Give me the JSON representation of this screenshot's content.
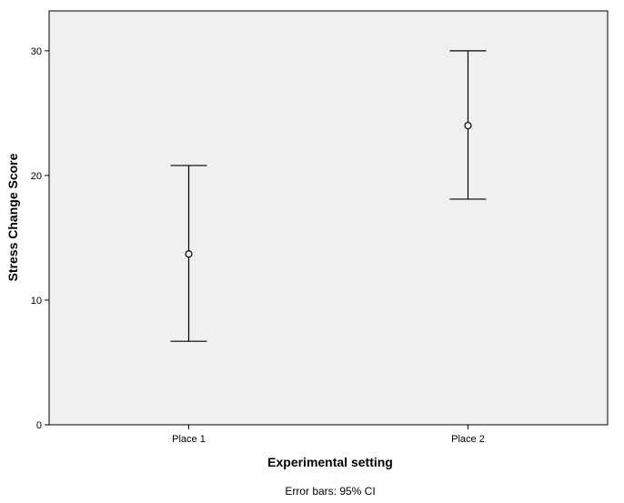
{
  "chart_data": {
    "type": "errorbar",
    "categories": [
      "Place 1",
      "Place 2"
    ],
    "series": [
      {
        "mean": [
          13.7,
          24.0
        ],
        "lower": [
          6.7,
          18.1
        ],
        "upper": [
          20.8,
          30.0
        ]
      }
    ],
    "xlabel": "Experimental setting",
    "ylabel": "Stress Change Score",
    "yticks": [
      0,
      10,
      20,
      30
    ],
    "ylim": [
      0,
      33.2
    ],
    "footnote": "Error bars:  95% CI",
    "grid": false,
    "colors": {
      "plot_bg": "#f0f0f0",
      "line": "#000000"
    }
  }
}
